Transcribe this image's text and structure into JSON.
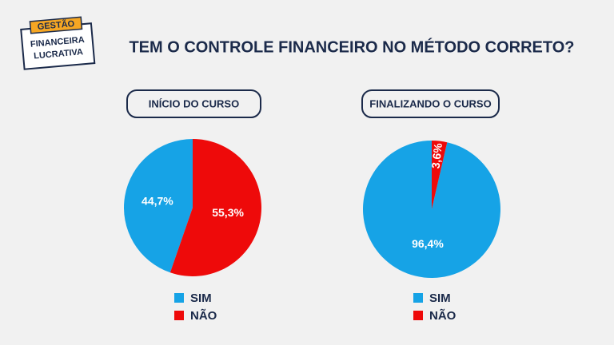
{
  "header": {
    "logo_top": "GESTÃO",
    "logo_lines": [
      "FINANCEIRA",
      "LUCRATIVA"
    ],
    "title": "TEM O CONTROLE FINANCEIRO NO MÉTODO CORRETO?"
  },
  "chart_data": [
    {
      "type": "pie",
      "title": "INÍCIO DO CURSO",
      "categories": [
        "SIM",
        "NÃO"
      ],
      "values": [
        44.7,
        55.3
      ],
      "value_labels": [
        "44,7%",
        "55,3%"
      ],
      "colors": [
        "#16a3e6",
        "#ee0a0a"
      ]
    },
    {
      "type": "pie",
      "title": "FINALIZANDO O CURSO",
      "categories": [
        "SIM",
        "NÃO"
      ],
      "values": [
        96.4,
        3.6
      ],
      "value_labels": [
        "96,4%",
        "3,6%"
      ],
      "colors": [
        "#16a3e6",
        "#ee0a0a"
      ]
    }
  ]
}
